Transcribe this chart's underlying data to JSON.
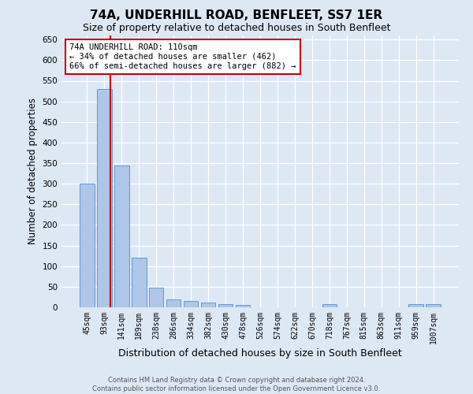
{
  "title": "74A, UNDERHILL ROAD, BENFLEET, SS7 1ER",
  "subtitle": "Size of property relative to detached houses in South Benfleet",
  "xlabel": "Distribution of detached houses by size in South Benfleet",
  "ylabel": "Number of detached properties",
  "footer_line1": "Contains HM Land Registry data © Crown copyright and database right 2024.",
  "footer_line2": "Contains public sector information licensed under the Open Government Licence v3.0.",
  "bin_labels": [
    "45sqm",
    "93sqm",
    "141sqm",
    "189sqm",
    "238sqm",
    "286sqm",
    "334sqm",
    "382sqm",
    "430sqm",
    "478sqm",
    "526sqm",
    "574sqm",
    "622sqm",
    "670sqm",
    "718sqm",
    "767sqm",
    "815sqm",
    "863sqm",
    "911sqm",
    "959sqm",
    "1007sqm"
  ],
  "bar_values": [
    300,
    530,
    345,
    120,
    48,
    20,
    15,
    12,
    7,
    5,
    0,
    0,
    0,
    0,
    7,
    0,
    0,
    0,
    0,
    7,
    7
  ],
  "bar_color": "#aec6e8",
  "bar_edgecolor": "#5b9bd5",
  "ylim": [
    0,
    660
  ],
  "yticks": [
    0,
    50,
    100,
    150,
    200,
    250,
    300,
    350,
    400,
    450,
    500,
    550,
    600,
    650
  ],
  "vline_color": "#cc0000",
  "annotation_line1": "74A UNDERHILL ROAD: 110sqm",
  "annotation_line2": "← 34% of detached houses are smaller (462)",
  "annotation_line3": "66% of semi-detached houses are larger (882) →",
  "background_color": "#dde8f5",
  "grid_color": "#ffffff"
}
